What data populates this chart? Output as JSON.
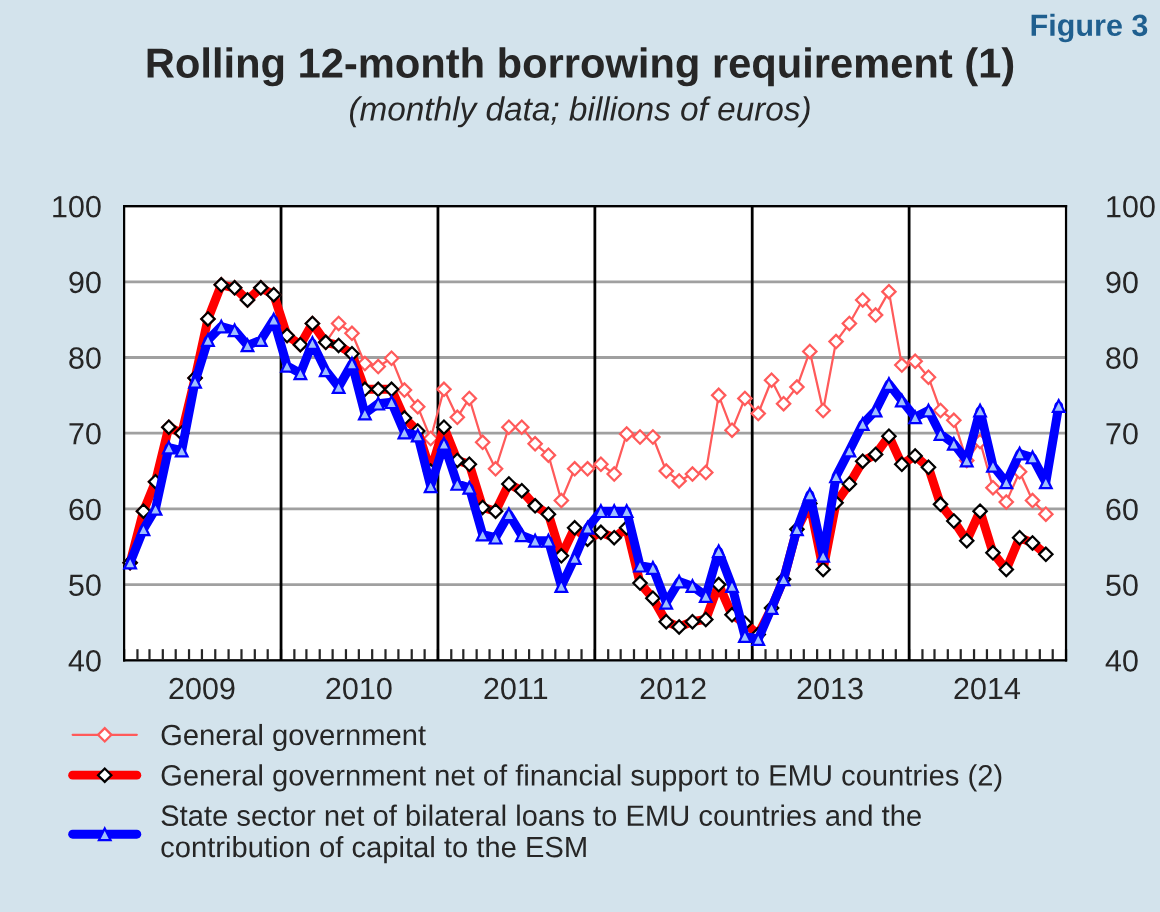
{
  "chart_data": {
    "type": "line",
    "title": "Rolling 12-month borrowing requirement (1)",
    "subtitle": "(monthly data; billions of euros)",
    "annotations": [
      "Figure 3"
    ],
    "x": [
      "2009-01-15",
      "2009-02-15",
      "2009-03-15",
      "2009-04-15",
      "2009-05-15",
      "2009-06-15",
      "2009-07-15",
      "2009-08-15",
      "2009-09-15",
      "2009-10-15",
      "2009-11-15",
      "2009-12-15",
      "2010-01-15",
      "2010-02-15",
      "2010-03-15",
      "2010-04-15",
      "2010-05-15",
      "2010-06-15",
      "2010-07-15",
      "2010-08-15",
      "2010-09-15",
      "2010-10-15",
      "2010-11-15",
      "2010-12-15",
      "2011-01-15",
      "2011-02-15",
      "2011-03-15",
      "2011-04-15",
      "2011-05-15",
      "2011-06-15",
      "2011-07-15",
      "2011-08-15",
      "2011-09-15",
      "2011-10-15",
      "2011-11-15",
      "2011-12-15",
      "2012-01-15",
      "2012-02-15",
      "2012-03-15",
      "2012-04-15",
      "2012-05-15",
      "2012-06-15",
      "2012-07-15",
      "2012-08-15",
      "2012-09-15",
      "2012-10-15",
      "2012-11-15",
      "2012-12-15",
      "2013-01-15",
      "2013-02-15",
      "2013-03-15",
      "2013-04-15",
      "2013-05-15",
      "2013-06-15",
      "2013-07-15",
      "2013-08-15",
      "2013-09-15",
      "2013-10-15",
      "2013-11-15",
      "2013-12-15",
      "2014-01-15",
      "2014-02-15",
      "2014-03-15",
      "2014-04-15",
      "2014-05-15",
      "2014-06-15",
      "2014-07-15",
      "2014-08-15",
      "2014-09-15",
      "2014-10-15",
      "2014-11-15",
      "2014-12-15"
    ],
    "series": [
      {
        "name": "General government",
        "color": "#ff5a5a",
        "marker": "diamond",
        "values": [
          52.9,
          59.7,
          63.6,
          70.8,
          70.0,
          77.3,
          85.1,
          89.6,
          89.2,
          87.6,
          89.2,
          88.3,
          82.9,
          81.7,
          84.5,
          82.0,
          84.5,
          83.2,
          79.2,
          78.8,
          79.9,
          75.7,
          73.5,
          69.3,
          75.8,
          72.1,
          74.6,
          68.8,
          65.3,
          70.8,
          70.8,
          68.6,
          67.1,
          61.1,
          65.3,
          65.3,
          65.9,
          64.6,
          69.9,
          69.5,
          69.5,
          65.0,
          63.7,
          64.6,
          64.8,
          75.0,
          70.4,
          74.6,
          72.6,
          77.0,
          73.9,
          76.1,
          80.8,
          73.0,
          82.1,
          84.5,
          87.6,
          85.6,
          88.7,
          79.0,
          79.5,
          77.4,
          73.0,
          71.7,
          66.4,
          68.9,
          62.8,
          60.9,
          64.9,
          61.1,
          59.3,
          null
        ]
      },
      {
        "name": "General government net of financial support to EMU countries (2)",
        "color": "#ff0000",
        "marker": "diamond",
        "values": [
          52.9,
          59.7,
          63.6,
          70.8,
          70.0,
          77.3,
          85.1,
          89.6,
          89.2,
          87.6,
          89.2,
          88.3,
          82.9,
          81.7,
          84.5,
          82.0,
          81.6,
          80.5,
          75.8,
          75.8,
          75.8,
          72.0,
          70.3,
          65.0,
          70.8,
          66.4,
          65.9,
          60.2,
          59.7,
          63.3,
          62.4,
          60.4,
          59.3,
          53.8,
          57.5,
          56.0,
          56.9,
          56.2,
          57.5,
          50.2,
          48.2,
          45.1,
          44.4,
          45.1,
          45.4,
          50.0,
          46.0,
          44.9,
          43.4,
          46.9,
          50.7,
          57.3,
          60.7,
          52.0,
          60.8,
          63.3,
          66.3,
          67.2,
          69.6,
          65.9,
          67.0,
          65.5,
          60.6,
          58.4,
          55.8,
          59.7,
          54.2,
          52.0,
          56.2,
          55.5,
          54.0,
          null
        ]
      },
      {
        "name": "State sector net of bilateral loans to EMU countries and the\ncontribution of capital to the ESM",
        "color": "#0000ff",
        "marker": "triangle",
        "values": [
          52.9,
          57.3,
          60.0,
          68.1,
          67.7,
          76.8,
          82.3,
          84.1,
          83.6,
          81.6,
          82.3,
          85.0,
          78.9,
          77.9,
          81.9,
          78.3,
          76.1,
          79.2,
          72.6,
          73.9,
          74.1,
          70.1,
          69.7,
          63.0,
          68.6,
          63.3,
          62.8,
          56.6,
          56.2,
          59.3,
          56.5,
          55.8,
          55.8,
          49.8,
          53.5,
          57.5,
          59.7,
          59.7,
          59.7,
          52.5,
          52.2,
          47.6,
          50.4,
          49.8,
          48.5,
          54.4,
          49.8,
          43.2,
          42.8,
          46.9,
          50.7,
          57.3,
          61.9,
          53.8,
          64.3,
          67.7,
          71.2,
          73.0,
          76.5,
          74.3,
          72.1,
          73.0,
          69.9,
          68.6,
          66.4,
          73.0,
          65.7,
          63.5,
          67.3,
          66.8,
          63.5,
          73.6
        ]
      }
    ],
    "xlim": [
      "2009-01-01",
      "2015-01-01"
    ],
    "xticks": [
      {
        "value": "2009-01-01",
        "label": null
      },
      {
        "value": "2009-02-01",
        "label": null
      },
      {
        "value": "2009-03-01",
        "label": null
      },
      {
        "value": "2009-04-01",
        "label": null
      },
      {
        "value": "2009-05-01",
        "label": null
      },
      {
        "value": "2009-06-01",
        "label": null
      },
      {
        "value": "2009-07-01",
        "label": "2009"
      },
      {
        "value": "2009-08-01",
        "label": null
      },
      {
        "value": "2009-09-01",
        "label": null
      },
      {
        "value": "2009-10-01",
        "label": null
      },
      {
        "value": "2009-11-01",
        "label": null
      },
      {
        "value": "2009-12-01",
        "label": null
      },
      {
        "value": "2010-01-01",
        "label": null
      },
      {
        "value": "2010-02-01",
        "label": null
      },
      {
        "value": "2010-03-01",
        "label": null
      },
      {
        "value": "2010-04-01",
        "label": null
      },
      {
        "value": "2010-05-01",
        "label": null
      },
      {
        "value": "2010-06-01",
        "label": null
      },
      {
        "value": "2010-07-01",
        "label": "2010"
      },
      {
        "value": "2010-08-01",
        "label": null
      },
      {
        "value": "2010-09-01",
        "label": null
      },
      {
        "value": "2010-10-01",
        "label": null
      },
      {
        "value": "2010-11-01",
        "label": null
      },
      {
        "value": "2010-12-01",
        "label": null
      },
      {
        "value": "2011-01-01",
        "label": null
      },
      {
        "value": "2011-02-01",
        "label": null
      },
      {
        "value": "2011-03-01",
        "label": null
      },
      {
        "value": "2011-04-01",
        "label": null
      },
      {
        "value": "2011-05-01",
        "label": null
      },
      {
        "value": "2011-06-01",
        "label": null
      },
      {
        "value": "2011-07-01",
        "label": "2011"
      },
      {
        "value": "2011-08-01",
        "label": null
      },
      {
        "value": "2011-09-01",
        "label": null
      },
      {
        "value": "2011-10-01",
        "label": null
      },
      {
        "value": "2011-11-01",
        "label": null
      },
      {
        "value": "2011-12-01",
        "label": null
      },
      {
        "value": "2012-01-01",
        "label": null
      },
      {
        "value": "2012-02-01",
        "label": null
      },
      {
        "value": "2012-03-01",
        "label": null
      },
      {
        "value": "2012-04-01",
        "label": null
      },
      {
        "value": "2012-05-01",
        "label": null
      },
      {
        "value": "2012-06-01",
        "label": null
      },
      {
        "value": "2012-07-01",
        "label": "2012"
      },
      {
        "value": "2012-08-01",
        "label": null
      },
      {
        "value": "2012-09-01",
        "label": null
      },
      {
        "value": "2012-10-01",
        "label": null
      },
      {
        "value": "2012-11-01",
        "label": null
      },
      {
        "value": "2012-12-01",
        "label": null
      },
      {
        "value": "2013-01-01",
        "label": null
      },
      {
        "value": "2013-02-01",
        "label": null
      },
      {
        "value": "2013-03-01",
        "label": null
      },
      {
        "value": "2013-04-01",
        "label": null
      },
      {
        "value": "2013-05-01",
        "label": null
      },
      {
        "value": "2013-06-01",
        "label": null
      },
      {
        "value": "2013-07-01",
        "label": "2013"
      },
      {
        "value": "2013-08-01",
        "label": null
      },
      {
        "value": "2013-09-01",
        "label": null
      },
      {
        "value": "2013-10-01",
        "label": null
      },
      {
        "value": "2013-11-01",
        "label": null
      },
      {
        "value": "2013-12-01",
        "label": null
      },
      {
        "value": "2014-01-01",
        "label": null
      },
      {
        "value": "2014-02-01",
        "label": null
      },
      {
        "value": "2014-03-01",
        "label": null
      },
      {
        "value": "2014-04-01",
        "label": null
      },
      {
        "value": "2014-05-01",
        "label": null
      },
      {
        "value": "2014-06-01",
        "label": null
      },
      {
        "value": "2014-07-01",
        "label": "2014"
      },
      {
        "value": "2014-08-01",
        "label": null
      },
      {
        "value": "2014-09-01",
        "label": null
      },
      {
        "value": "2014-10-01",
        "label": null
      },
      {
        "value": "2014-11-01",
        "label": null
      },
      {
        "value": "2014-12-01",
        "label": null
      },
      {
        "value": "2015-01-01",
        "label": null
      }
    ],
    "ylim": [
      40,
      100
    ],
    "yticks": [
      40,
      50,
      60,
      70,
      80,
      90,
      100
    ],
    "y2lim": [
      40,
      100
    ],
    "y2ticks": [
      40,
      50,
      60,
      70,
      80,
      90,
      100
    ],
    "ref_lines": [
      {
        "axis": "x",
        "value": "2010-01-01",
        "color": "#000000"
      },
      {
        "axis": "x",
        "value": "2011-01-01",
        "color": "#000000"
      },
      {
        "axis": "x",
        "value": "2012-01-01",
        "color": "#000000"
      },
      {
        "axis": "x",
        "value": "2013-01-01",
        "color": "#000000"
      },
      {
        "axis": "x",
        "value": "2014-01-01",
        "color": "#000000"
      }
    ],
    "grid": "y",
    "legend": "bottom",
    "line_style": "solid"
  }
}
